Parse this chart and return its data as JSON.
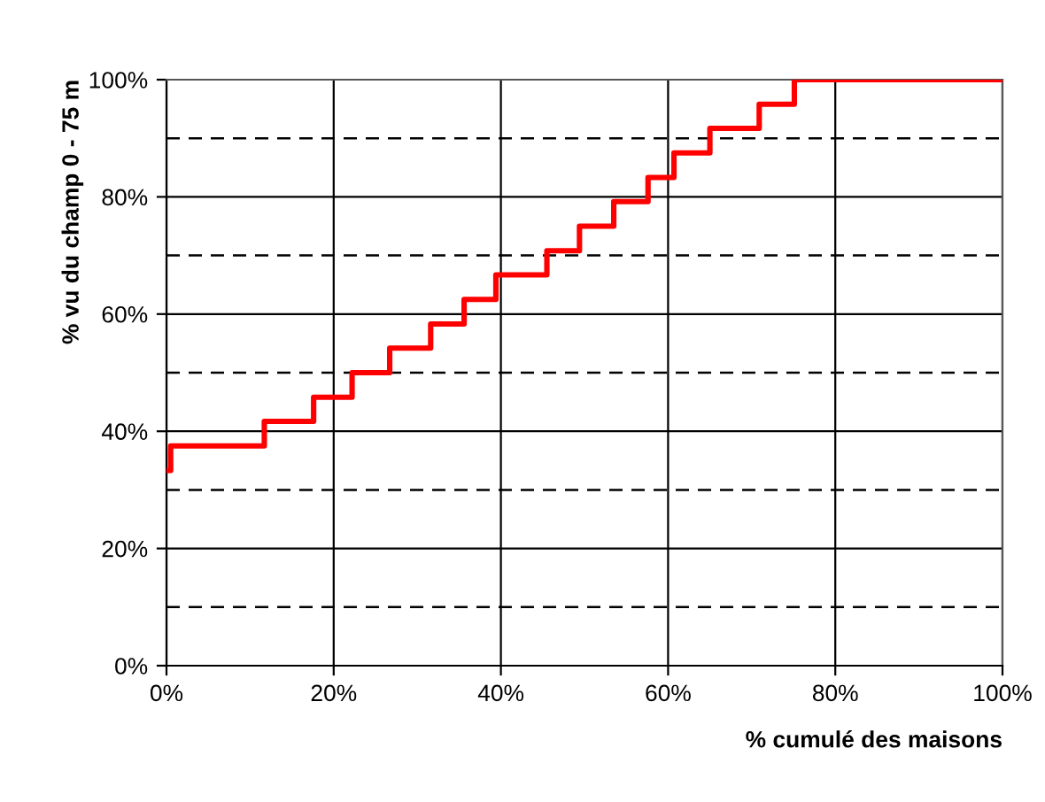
{
  "chart_data": {
    "type": "step",
    "xlabel": "% cumulé des maisons",
    "ylabel": "% vu du champ 0 - 75 m",
    "x": [
      0,
      0.5,
      11.7,
      17.6,
      22.2,
      26.7,
      31.6,
      35.6,
      39.4,
      45.5,
      49.4,
      53.5,
      57.6,
      60.7,
      65,
      70.9,
      75.1,
      100
    ],
    "series": [
      {
        "color": "#ff0000",
        "values": [
          33.3,
          37.5,
          41.7,
          45.8,
          50,
          54.2,
          58.3,
          62.5,
          66.7,
          70.8,
          75,
          79.2,
          83.3,
          87.5,
          91.7,
          95.8,
          100,
          100
        ]
      }
    ],
    "xlim": [
      0,
      100
    ],
    "ylim": [
      0,
      100
    ],
    "xticks": [
      {
        "value": 0,
        "label": "0%"
      },
      {
        "value": 20,
        "label": "20%"
      },
      {
        "value": 40,
        "label": "40%"
      },
      {
        "value": 60,
        "label": "60%"
      },
      {
        "value": 80,
        "label": "80%"
      },
      {
        "value": 100,
        "label": "100%"
      }
    ],
    "yticks": [
      {
        "value": 0,
        "label": "0%"
      },
      {
        "value": 20,
        "label": "20%"
      },
      {
        "value": 40,
        "label": "40%"
      },
      {
        "value": 60,
        "label": "60%"
      },
      {
        "value": 80,
        "label": "80%"
      },
      {
        "value": 100,
        "label": "100%"
      }
    ],
    "grid": true,
    "legend": false,
    "marker": "none",
    "line_style": "solid",
    "ref_lines": [
      {
        "axis": "y",
        "value": 10,
        "line_style": "dashed",
        "color": "#000000"
      },
      {
        "axis": "y",
        "value": 30,
        "line_style": "dashed",
        "color": "#000000"
      },
      {
        "axis": "y",
        "value": 50,
        "line_style": "dashed",
        "color": "#000000"
      },
      {
        "axis": "y",
        "value": 70,
        "line_style": "dashed",
        "color": "#000000"
      },
      {
        "axis": "y",
        "value": 90,
        "line_style": "dashed",
        "color": "#000000"
      }
    ]
  }
}
